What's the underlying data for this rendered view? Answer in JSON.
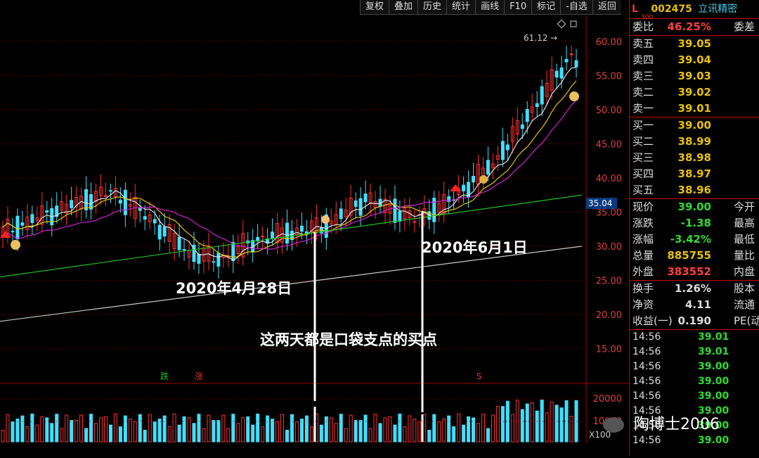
{
  "toolbar": {
    "items": [
      "复权",
      "叠加",
      "历史",
      "统计",
      "画线",
      "F10",
      "标记",
      "-自选",
      "返回"
    ]
  },
  "stock": {
    "market_flag": "L",
    "index_tag": "300",
    "code": "002475",
    "name": "立讯精密"
  },
  "quote": {
    "weibi": {
      "label": "委比",
      "value": "46.25%",
      "extra": "委差"
    },
    "asks": [
      {
        "label": "卖五",
        "price": "39.05"
      },
      {
        "label": "卖四",
        "price": "39.04"
      },
      {
        "label": "卖三",
        "price": "39.03"
      },
      {
        "label": "卖二",
        "price": "39.02"
      },
      {
        "label": "卖一",
        "price": "39.01"
      }
    ],
    "bids": [
      {
        "label": "买一",
        "price": "39.00"
      },
      {
        "label": "买二",
        "price": "38.99"
      },
      {
        "label": "买三",
        "price": "38.98"
      },
      {
        "label": "买四",
        "price": "38.97"
      },
      {
        "label": "买五",
        "price": "38.96"
      }
    ],
    "stats": [
      {
        "label": "现价",
        "value": "39.00",
        "extra": "今开",
        "color": "grn"
      },
      {
        "label": "涨跌",
        "value": "-1.38",
        "extra": "最高",
        "color": "grn"
      },
      {
        "label": "涨幅",
        "value": "-3.42%",
        "extra": "最低",
        "color": "grn"
      },
      {
        "label": "总量",
        "value": "885755",
        "extra": "量比",
        "color": "yel"
      },
      {
        "label": "外盘",
        "value": "383552",
        "extra": "内盘",
        "color": "red"
      }
    ],
    "fund": [
      {
        "label": "换手",
        "value": "1.26%",
        "extra": "股本"
      },
      {
        "label": "净资",
        "value": "4.11",
        "extra": "流通"
      },
      {
        "label": "收益(一)",
        "value": "0.190",
        "extra": "PE(动"
      }
    ],
    "ticks": [
      {
        "time": "14:56",
        "price": "39.01"
      },
      {
        "time": "14:56",
        "price": "39.01"
      },
      {
        "time": "14:56",
        "price": "39.00"
      },
      {
        "time": "14:56",
        "price": "39.00"
      },
      {
        "time": "14:56",
        "price": "39.00"
      },
      {
        "time": "14:56",
        "price": "39.00"
      },
      {
        "time": "14:56",
        "price": "39.00"
      },
      {
        "time": "14:56",
        "price": "39.00"
      }
    ]
  },
  "chart": {
    "price_ticks": [
      "60.00",
      "55.00",
      "50.00",
      "45.00",
      "40.00",
      "35.00",
      "30.00",
      "25.00",
      "20.00",
      "15.00"
    ],
    "high_label": "61.12",
    "current_price_tag": "35.04",
    "volume_ticks": [
      "20000",
      "10000"
    ],
    "volume_unit": "X100",
    "markers": {
      "down": "跌",
      "up": "涨",
      "s": "S"
    }
  },
  "annotations": {
    "date1": "2020年4月28日",
    "date2": "2020年6月1日",
    "note": "这两天都是口袋支点的买点"
  },
  "watermark": "陶博士2006",
  "colors": {
    "up": "#ff3030",
    "down": "#40e0ff",
    "ma5": "#e0e0e0",
    "ma10": "#e8c200",
    "ma20": "#d020d0",
    "ma60": "#20c020",
    "ma120": "#c8c8c8",
    "grid": "#a00000"
  }
}
